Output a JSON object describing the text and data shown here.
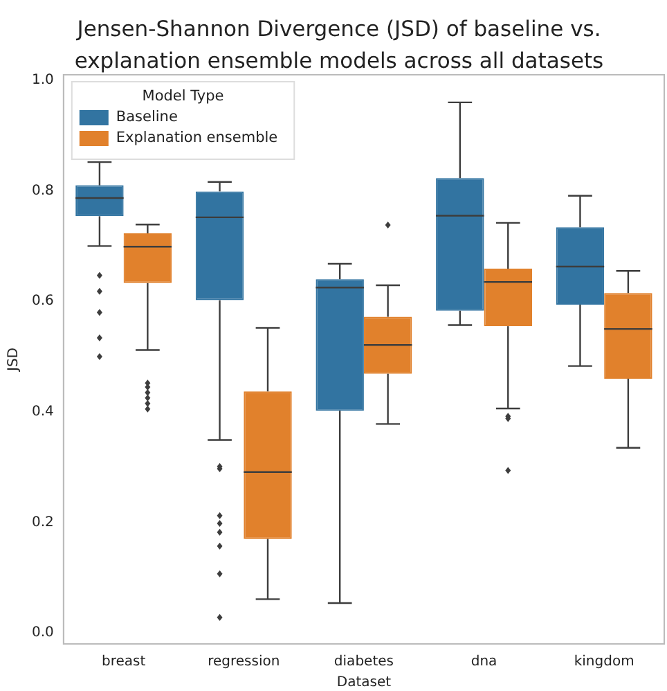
{
  "chart_data": {
    "type": "box",
    "title": "Jensen-Shannon Divergence (JSD) of baseline vs. explanation ensemble models across all datasets",
    "xlabel": "Dataset",
    "ylabel": "JSD",
    "legend_title": "Model Type",
    "legend": "top left",
    "grid": false,
    "categories": [
      "breast",
      "regression",
      "diabetes",
      "dna",
      "kingdom"
    ],
    "ylim": [
      -0.02,
      1.01
    ],
    "yticks": [
      {
        "value": 0,
        "label": "0.0"
      },
      {
        "value": 0.2,
        "label": "0.2"
      },
      {
        "value": 0.4,
        "label": "0.4"
      },
      {
        "value": 0.6,
        "label": "0.6"
      },
      {
        "value": 0.8,
        "label": "0.8"
      },
      {
        "value": 1,
        "label": "1.0"
      }
    ],
    "series": [
      {
        "name": "Baseline",
        "color": "#3274a1",
        "boxes": [
          {
            "low": 0.7,
            "q1": 0.754,
            "median": 0.787,
            "q3": 0.81,
            "high": 0.852,
            "outliers": [
              0.647,
              0.618,
              0.58,
              0.534,
              0.5
            ]
          },
          {
            "low": 0.349,
            "q1": 0.602,
            "median": 0.752,
            "q3": 0.799,
            "high": 0.816,
            "outliers": [
              0.301,
              0.297,
              0.212,
              0.198,
              0.182,
              0.157,
              0.107,
              0.028
            ]
          },
          {
            "low": 0.054,
            "q1": 0.402,
            "median": 0.625,
            "q3": 0.64,
            "high": 0.668
          },
          {
            "low": 0.557,
            "q1": 0.583,
            "median": 0.755,
            "q3": 0.823,
            "high": 0.96
          },
          {
            "low": 0.483,
            "q1": 0.594,
            "median": 0.663,
            "q3": 0.734,
            "high": 0.791
          }
        ]
      },
      {
        "name": "Explanation ensemble",
        "color": "#e1812c",
        "boxes": [
          {
            "low": 0.512,
            "q1": 0.633,
            "median": 0.699,
            "q3": 0.723,
            "high": 0.739,
            "outliers": [
              0.452,
              0.445,
              0.435,
              0.425,
              0.415,
              0.405
            ]
          },
          {
            "low": 0.061,
            "q1": 0.17,
            "median": 0.291,
            "q3": 0.437,
            "high": 0.552
          },
          {
            "low": 0.378,
            "q1": 0.469,
            "median": 0.521,
            "q3": 0.572,
            "high": 0.629,
            "outliers": [
              0.738
            ]
          },
          {
            "low": 0.406,
            "q1": 0.555,
            "median": 0.635,
            "q3": 0.659,
            "high": 0.742,
            "outliers": [
              0.392,
              0.388,
              0.294
            ]
          },
          {
            "low": 0.335,
            "q1": 0.46,
            "median": 0.55,
            "q3": 0.615,
            "high": 0.655
          }
        ]
      }
    ]
  }
}
